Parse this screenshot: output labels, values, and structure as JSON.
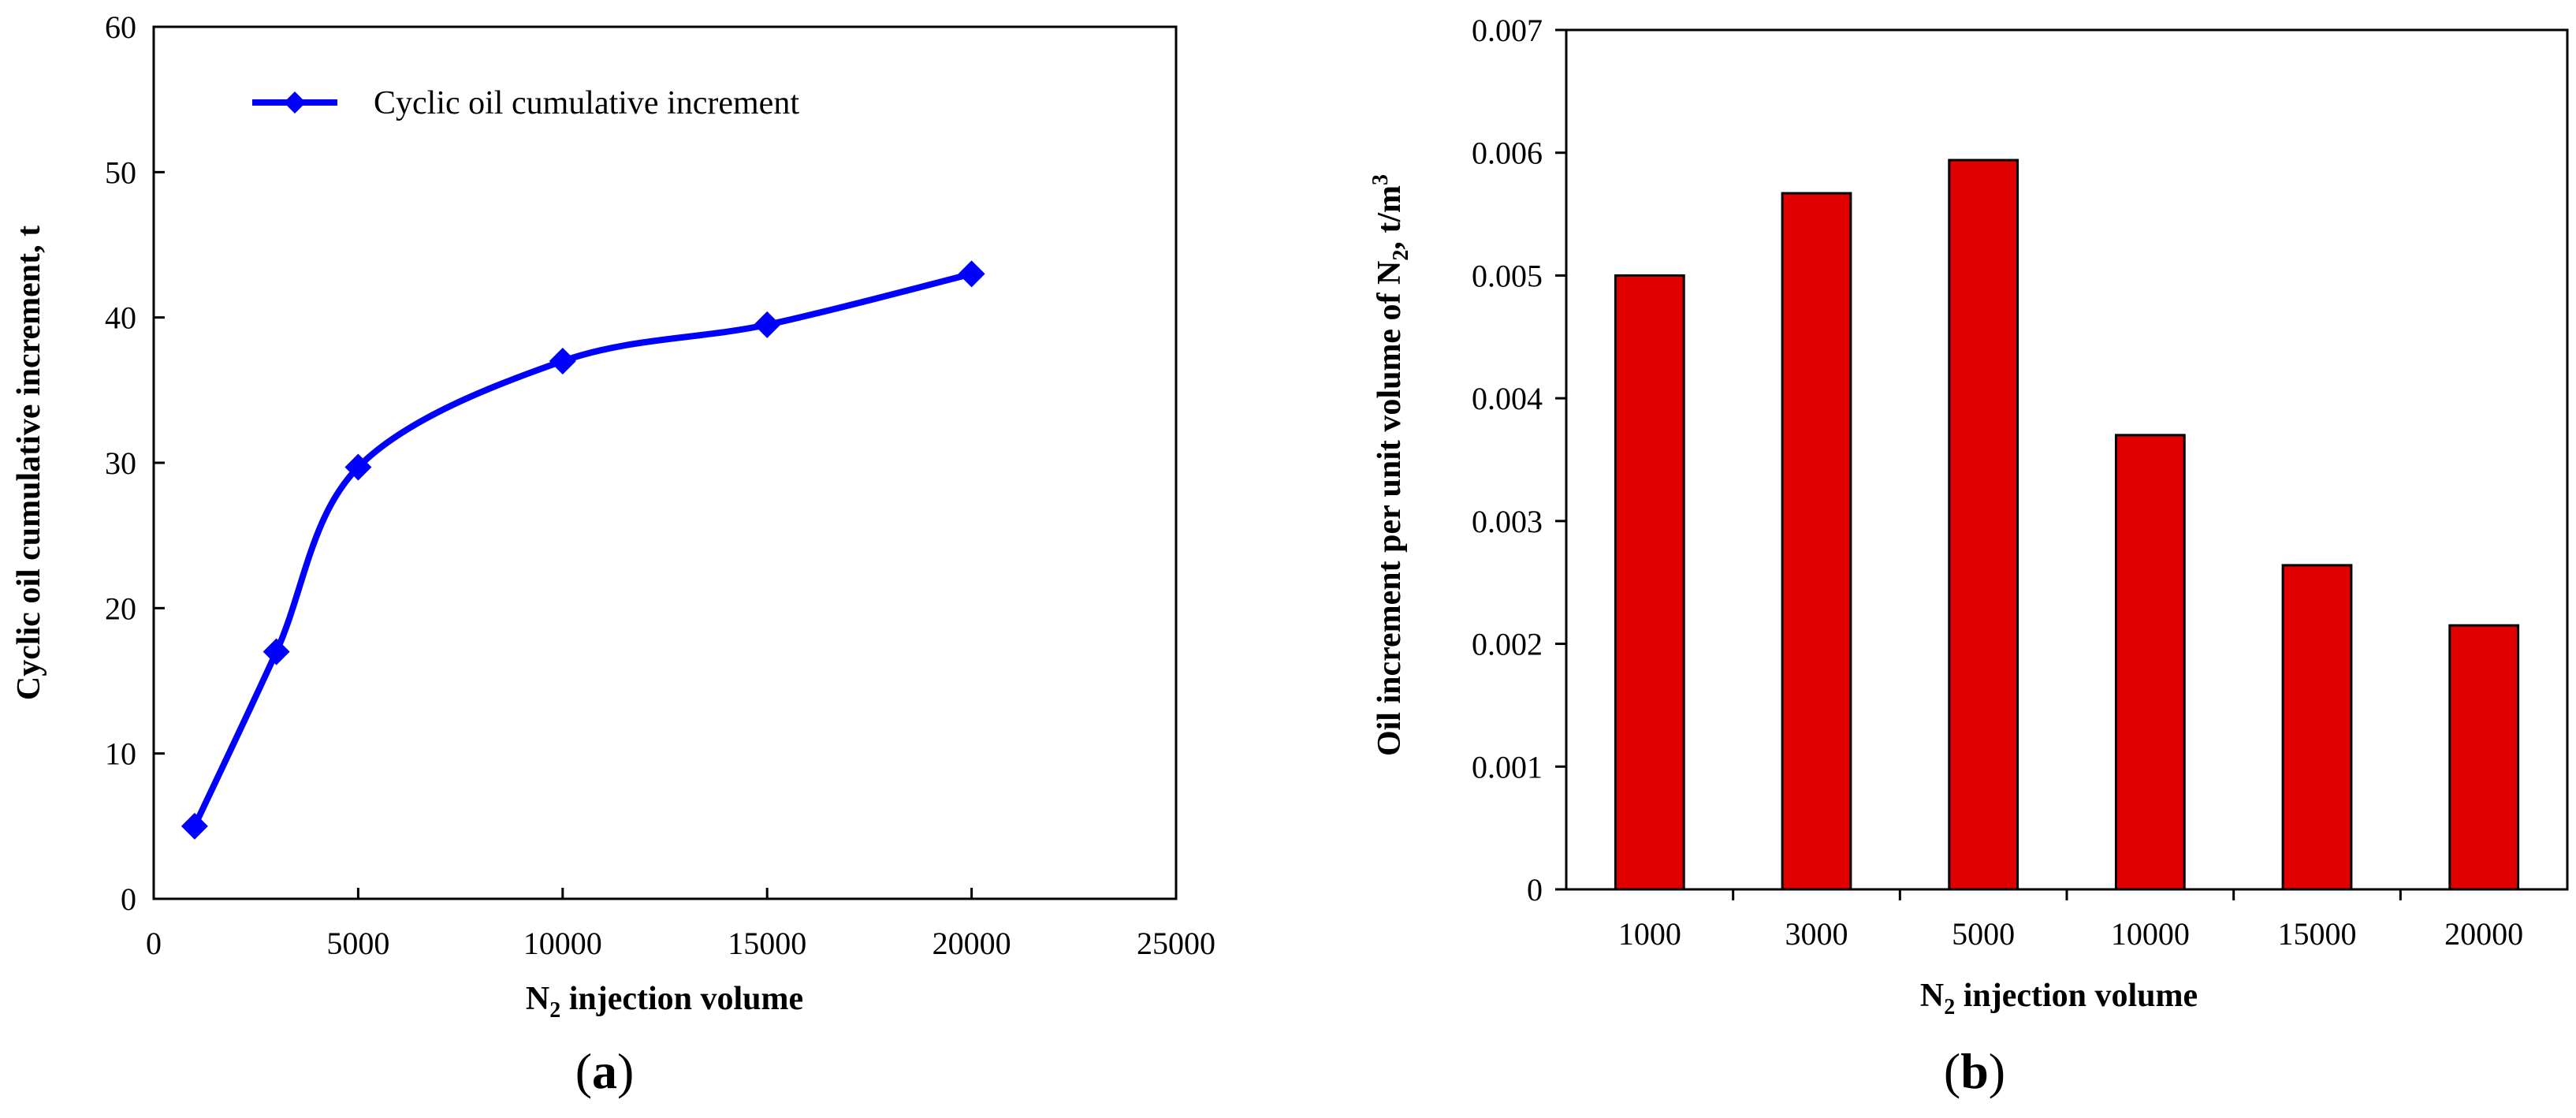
{
  "chart_data": [
    {
      "panel": "a",
      "type": "line",
      "x": [
        1000,
        3000,
        5000,
        10000,
        15000,
        20000
      ],
      "series": [
        {
          "name": "Cyclic oil cumulative increment",
          "values": [
            5,
            17,
            29.7,
            37,
            39.5,
            43
          ],
          "color": "#0000ff",
          "marker": "diamond"
        }
      ],
      "xlabel": {
        "main": "N",
        "sub": "2",
        "rest": " injection volume"
      },
      "ylabel": "Cyclic oil cumulative increment, t",
      "xlim": [
        0,
        25000
      ],
      "ylim": [
        0,
        60
      ],
      "xticks": [
        "0",
        "5000",
        "10000",
        "15000",
        "20000",
        "25000"
      ],
      "yticks": [
        "0",
        "10",
        "20",
        "30",
        "40",
        "50",
        "60"
      ],
      "legend_position": "top-left",
      "grid": false,
      "label_prefix": "(",
      "label_letter": "a",
      "label_suffix": ")"
    },
    {
      "panel": "b",
      "type": "bar",
      "categories": [
        "1000",
        "3000",
        "5000",
        "10000",
        "15000",
        "20000"
      ],
      "series": [
        {
          "values": [
            0.005,
            0.00567,
            0.00594,
            0.0037,
            0.00264,
            0.00215
          ],
          "color": "#e00000"
        }
      ],
      "xlabel": {
        "main": "N",
        "sub": "2",
        "rest": " injection volume"
      },
      "ylabel": {
        "main": "Oil increment per unit volume of  N",
        "sub": "2",
        "mid": ", t/m",
        "sup": "3"
      },
      "ylim": [
        0,
        0.007
      ],
      "yticks": [
        "0",
        "0.001",
        "0.002",
        "0.003",
        "0.004",
        "0.005",
        "0.006",
        "0.007"
      ],
      "grid": false,
      "label_prefix": "(",
      "label_letter": "b",
      "label_suffix": ")"
    }
  ]
}
